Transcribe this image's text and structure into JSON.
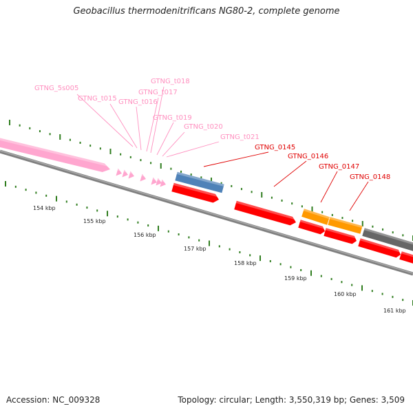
{
  "title": "Geobacillus thermodenitrificans NG80-2, complete genome",
  "footer": {
    "accession": "Accession: NC_009328",
    "summary": "Topology: circular; Length: 3,550,319 bp; Genes: 3,509"
  },
  "colors": {
    "backbone": "#808080",
    "tick": "#2f7d1e",
    "rna_gene": "#ffa6cf",
    "cds_red": "#ff0000",
    "cds_blue": "#4f82b8",
    "cds_orange": "#ff9900",
    "cds_gray": "#666666",
    "label_rna": "#ff8fbf",
    "label_cds": "#e00000"
  },
  "scale_labels": [
    "154 kbp",
    "155 kbp",
    "156 kbp",
    "157 kbp",
    "158 kbp",
    "159 kbp",
    "160 kbp",
    "161 kbp"
  ],
  "gene_labels": [
    {
      "text": "GTNG_5s005",
      "kind": "rna"
    },
    {
      "text": "GTNG_t015",
      "kind": "rna"
    },
    {
      "text": "GTNG_t016",
      "kind": "rna"
    },
    {
      "text": "GTNG_t017",
      "kind": "rna"
    },
    {
      "text": "GTNG_t018",
      "kind": "rna"
    },
    {
      "text": "GTNG_t019",
      "kind": "rna"
    },
    {
      "text": "GTNG_t020",
      "kind": "rna"
    },
    {
      "text": "GTNG_t021",
      "kind": "rna"
    },
    {
      "text": "GTNG_0145",
      "kind": "cds"
    },
    {
      "text": "GTNG_0146",
      "kind": "cds"
    },
    {
      "text": "GTNG_0147",
      "kind": "cds"
    },
    {
      "text": "GTNG_0148",
      "kind": "cds"
    }
  ]
}
